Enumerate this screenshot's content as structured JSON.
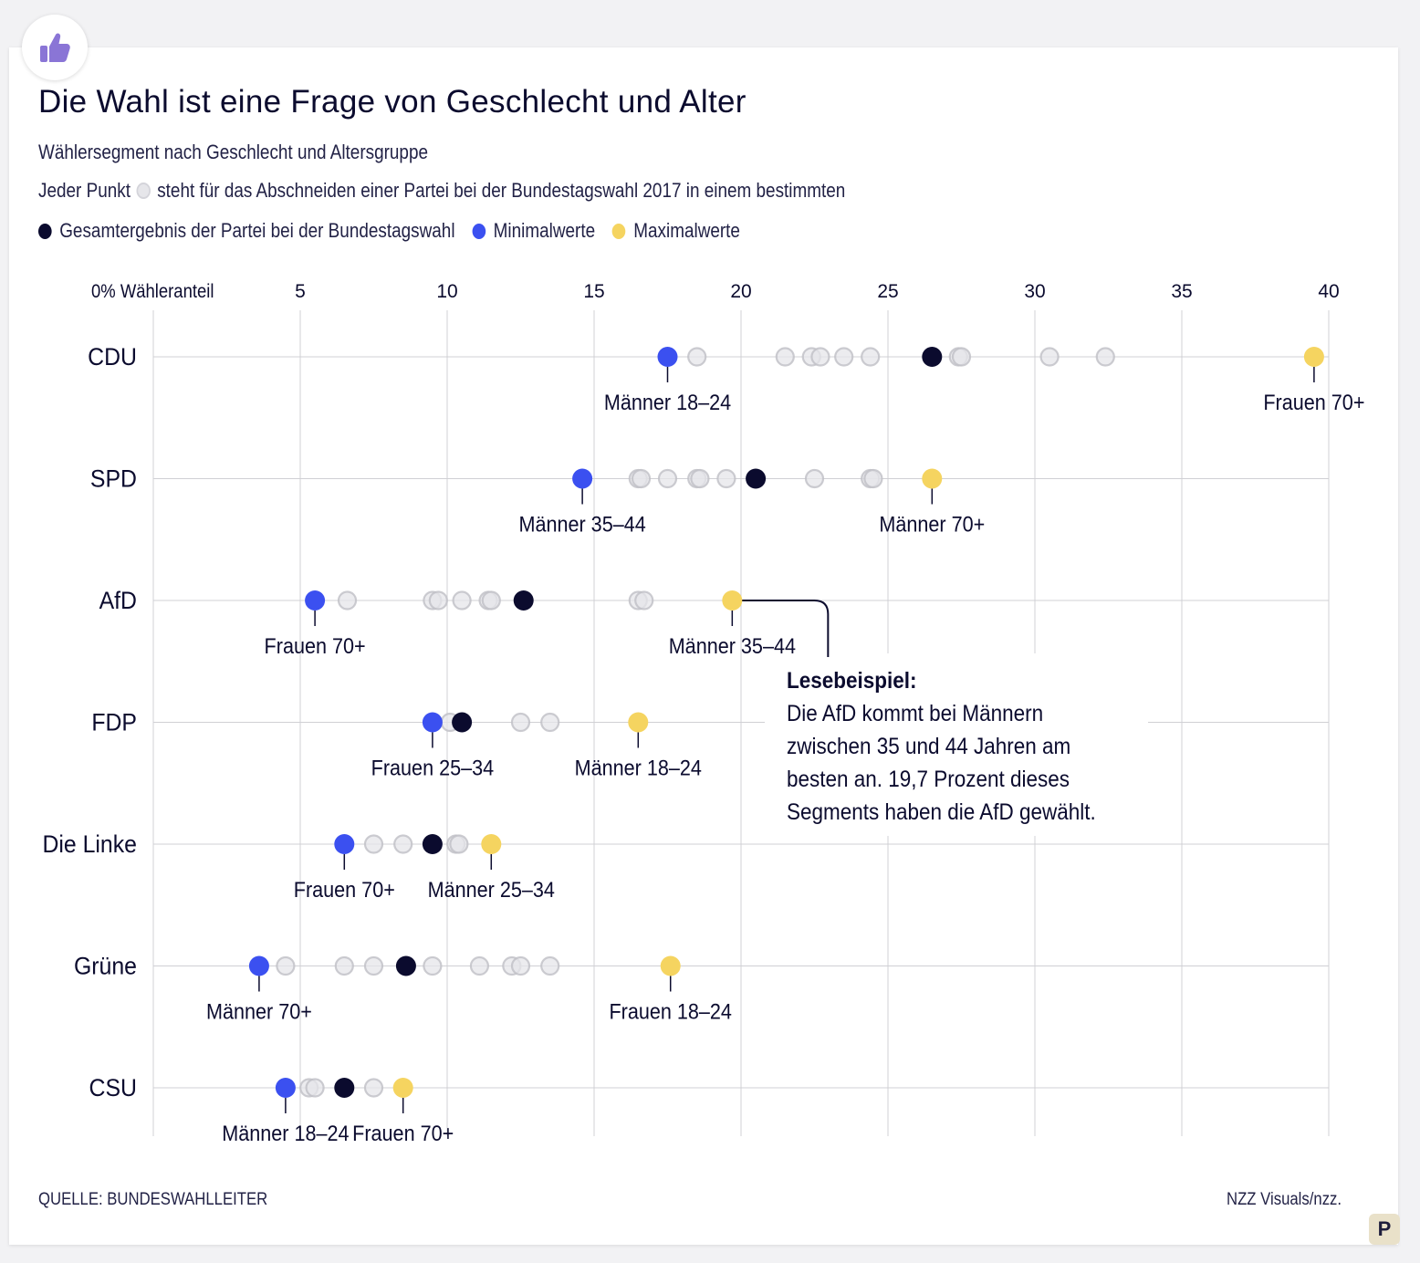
{
  "header": {
    "title": "Die Wahl ist eine Frage von Geschlecht und Alter",
    "subtitle": "Wählersegment nach Geschlecht und Altersgruppe",
    "legend_intro_before": "Jeder Punkt",
    "legend_intro_after": "steht für das Abschneiden einer Partei bei der Bundestagswahl 2017 in einem bestimmten",
    "legend_total": "Gesamtergebnis der Partei bei der Bundestagswahl",
    "legend_min": "Minimalwerte",
    "legend_max": "Maximalwerte"
  },
  "footer": {
    "source": "QUELLE: BUNDESWAHLLEITER",
    "credit": "NZZ Visuals/nzz.",
    "badge": "P"
  },
  "icons": {
    "top_badge": "thumbs-up-icon"
  },
  "colors": {
    "total": "#0b0b2e",
    "min": "#3b50f0",
    "max": "#f5d460",
    "segment": "#e6e6ea",
    "grid": "#d0d0d4",
    "text": "#0b0b2e"
  },
  "chart_data": {
    "type": "scatter",
    "x_axis_label": "0% Wähleranteil",
    "ticks": [
      5,
      10,
      15,
      20,
      25,
      30,
      35,
      40
    ],
    "xlim": [
      0,
      40
    ],
    "parties": [
      {
        "name": "CDU",
        "total": 26.5,
        "min": {
          "value": 17.5,
          "label": "Männer 18–24"
        },
        "max": {
          "value": 39.5,
          "label": "Frauen 70+"
        },
        "segments": [
          18.5,
          21.5,
          22.4,
          22.7,
          23.5,
          24.4,
          27.4,
          27.5,
          30.5,
          32.4
        ]
      },
      {
        "name": "SPD",
        "total": 20.5,
        "min": {
          "value": 14.6,
          "label": "Männer 35–44"
        },
        "max": {
          "value": 26.5,
          "label": "Männer 70+"
        },
        "segments": [
          16.5,
          16.6,
          17.5,
          18.5,
          18.6,
          19.5,
          22.5,
          24.4,
          24.5
        ]
      },
      {
        "name": "AfD",
        "total": 12.6,
        "min": {
          "value": 5.5,
          "label": "Frauen 70+"
        },
        "max": {
          "value": 19.7,
          "label": "Männer 35–44"
        },
        "segments": [
          6.6,
          9.5,
          9.7,
          10.5,
          11.4,
          11.5,
          16.5,
          16.7
        ]
      },
      {
        "name": "FDP",
        "total": 10.5,
        "min": {
          "value": 9.5,
          "label": "Frauen 25–34"
        },
        "max": {
          "value": 16.5,
          "label": "Männer 18–24"
        },
        "segments": [
          10.1,
          12.5,
          13.5
        ]
      },
      {
        "name": "Die Linke",
        "total": 9.5,
        "min": {
          "value": 6.5,
          "label": "Frauen 70+"
        },
        "max": {
          "value": 11.5,
          "label": "Männer 25–34"
        },
        "segments": [
          7.5,
          8.5,
          10.3,
          10.4
        ]
      },
      {
        "name": "Grüne",
        "total": 8.6,
        "min": {
          "value": 3.6,
          "label": "Männer 70+"
        },
        "max": {
          "value": 17.6,
          "label": "Frauen 18–24"
        },
        "segments": [
          4.5,
          6.5,
          7.5,
          9.5,
          11.1,
          12.2,
          12.5,
          13.5
        ]
      },
      {
        "name": "CSU",
        "total": 6.5,
        "min": {
          "value": 4.5,
          "label": "Männer 18–24"
        },
        "max": {
          "value": 8.5,
          "label": "Frauen 70+"
        },
        "segments": [
          5.3,
          5.5,
          7.5
        ]
      }
    ],
    "annotation": {
      "party": "AfD",
      "title": "Lesebeispiel:",
      "lines": [
        "Die AfD kommt bei Männern",
        "zwischen 35 und 44 Jahren am",
        "besten an. 19,7 Prozent dieses",
        "Segments haben die AfD gewählt."
      ]
    }
  }
}
